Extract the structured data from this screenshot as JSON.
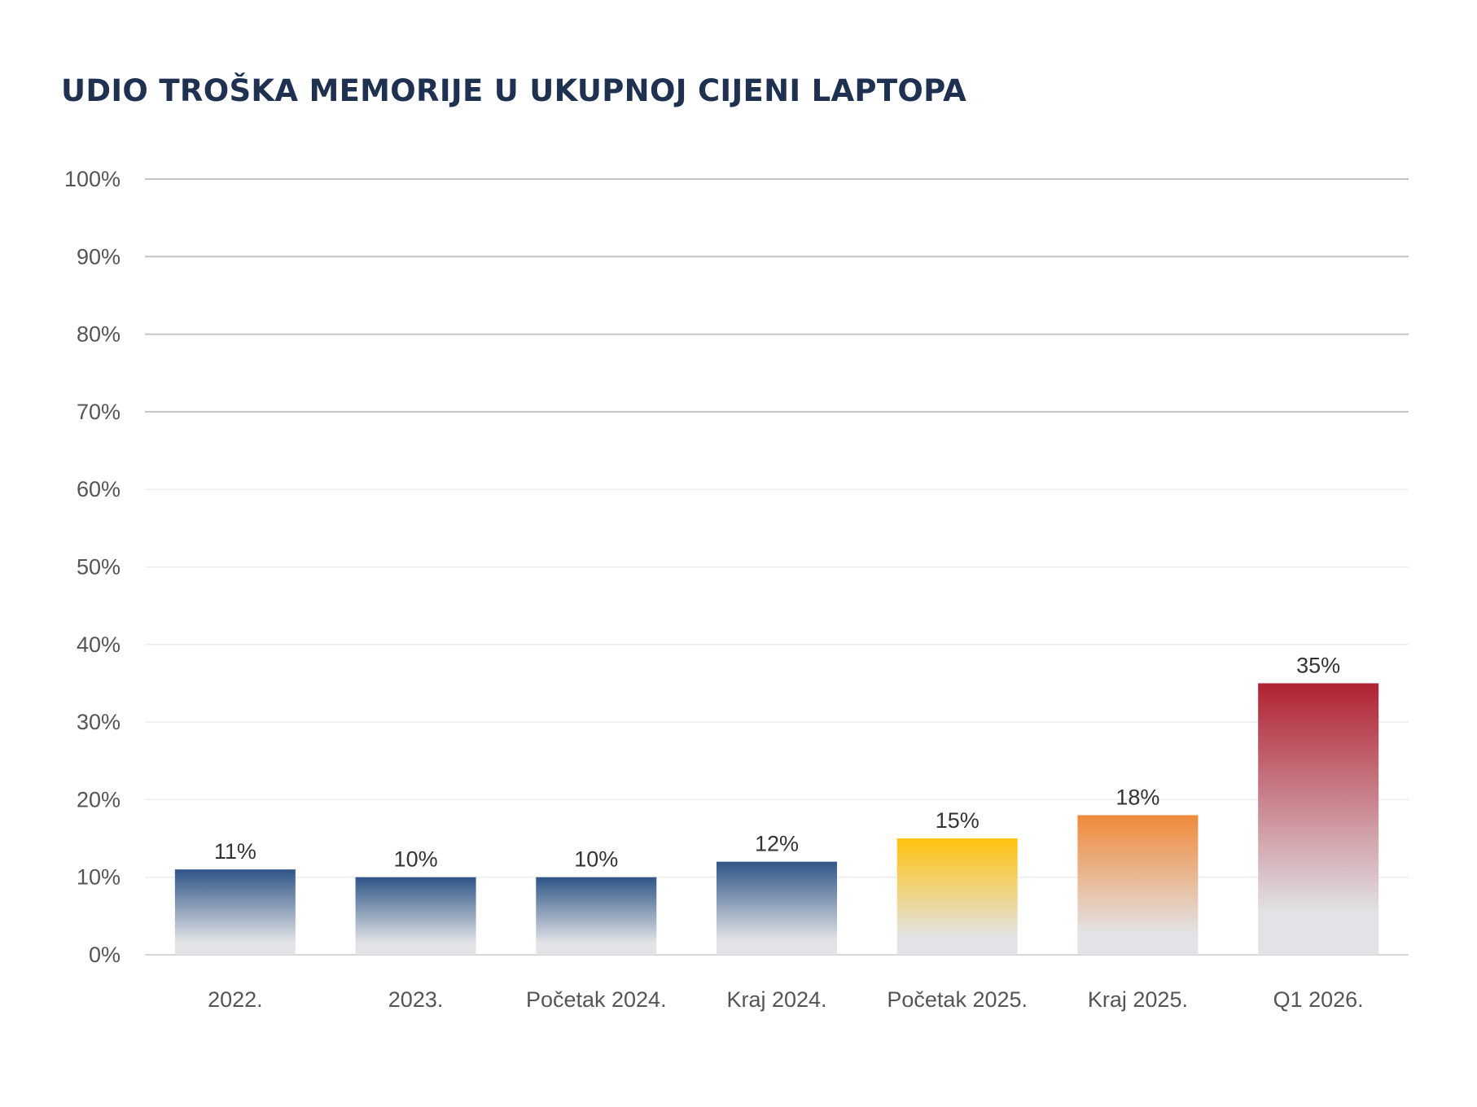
{
  "chart_data": {
    "type": "bar",
    "title": "UDIO TROŠKA MEMORIJE U UKUPNOJ CIJENI LAPTOPA",
    "xlabel": "",
    "ylabel": "",
    "ylim": [
      0,
      100
    ],
    "y_ticks": [
      "0%",
      "10%",
      "20%",
      "30%",
      "40%",
      "50%",
      "60%",
      "70%",
      "80%",
      "90%",
      "100%"
    ],
    "grid": true,
    "legend": "none",
    "categories": [
      "2022.",
      "2023.",
      "Početak 2024.",
      "Kraj 2024.",
      "Početak 2025.",
      "Kraj 2025.",
      "Q1 2026."
    ],
    "values": [
      11,
      10,
      10,
      12,
      15,
      18,
      35
    ],
    "value_labels": [
      "11%",
      "10%",
      "10%",
      "12%",
      "15%",
      "18%",
      "35%"
    ],
    "bar_colors": [
      "#2f5587",
      "#2f5587",
      "#2f5587",
      "#2f5587",
      "#ffc20e",
      "#ef8a3a",
      "#b02232"
    ],
    "gradient_bottom_color": "#e2e3e6"
  },
  "colors": {
    "title": "#1f3150",
    "grid_major": "#c4c4c4",
    "grid_minor": "#ececec"
  }
}
